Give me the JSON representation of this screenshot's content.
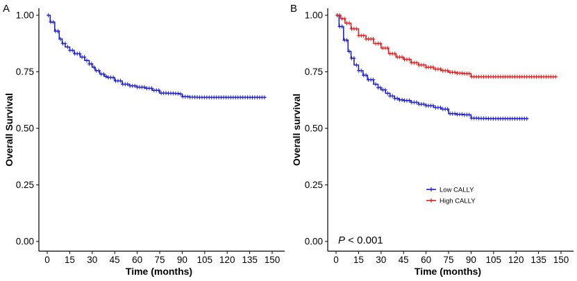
{
  "chart_data": [
    {
      "type": "line",
      "panel_label": "A",
      "xlabel": "Time (months)",
      "ylabel": "Overall Survival",
      "xlim": [
        0,
        150
      ],
      "ylim": [
        0,
        1
      ],
      "x_ticks": [
        "0",
        "15",
        "30",
        "45",
        "60",
        "75",
        "90",
        "105",
        "120",
        "135",
        "150"
      ],
      "y_ticks": [
        "0.00",
        "0.25",
        "0.50",
        "0.75",
        "1.00"
      ],
      "grid": false,
      "series": [
        {
          "color": "#1f1fd4",
          "x": [
            0,
            2,
            5,
            8,
            10,
            12,
            15,
            18,
            22,
            25,
            28,
            30,
            32,
            35,
            38,
            40,
            45,
            50,
            55,
            60,
            65,
            70,
            75,
            80,
            85,
            88,
            90,
            95,
            100,
            110,
            120,
            130,
            140,
            146
          ],
          "y": [
            1.0,
            0.97,
            0.93,
            0.895,
            0.875,
            0.86,
            0.845,
            0.83,
            0.815,
            0.8,
            0.785,
            0.77,
            0.755,
            0.74,
            0.73,
            0.725,
            0.71,
            0.695,
            0.688,
            0.682,
            0.677,
            0.668,
            0.656,
            0.655,
            0.654,
            0.652,
            0.64,
            0.638,
            0.637,
            0.637,
            0.637,
            0.637,
            0.637,
            0.637
          ]
        }
      ]
    },
    {
      "type": "line",
      "panel_label": "B",
      "xlabel": "Time (months)",
      "ylabel": "Overall survival",
      "xlim": [
        0,
        150
      ],
      "ylim": [
        0,
        1
      ],
      "x_ticks": [
        "0",
        "15",
        "30",
        "45",
        "60",
        "75",
        "90",
        "105",
        "120",
        "135",
        "150"
      ],
      "y_ticks": [
        "0.00",
        "0.25",
        "0.50",
        "0.75",
        "1.00"
      ],
      "grid": false,
      "legend_position": "center-right",
      "annotation": {
        "prefix": "P",
        "text": " < 0.001"
      },
      "series": [
        {
          "name": "Low  CALLY",
          "color": "#1f1fd4",
          "x": [
            0,
            2,
            5,
            8,
            10,
            12,
            15,
            18,
            21,
            25,
            28,
            30,
            33,
            36,
            39,
            42,
            45,
            50,
            55,
            60,
            65,
            70,
            75,
            80,
            85,
            90,
            95,
            100,
            110,
            120,
            128
          ],
          "y": [
            1.0,
            0.95,
            0.89,
            0.84,
            0.81,
            0.78,
            0.755,
            0.735,
            0.715,
            0.695,
            0.68,
            0.67,
            0.655,
            0.643,
            0.632,
            0.626,
            0.623,
            0.615,
            0.607,
            0.6,
            0.592,
            0.585,
            0.565,
            0.562,
            0.56,
            0.545,
            0.544,
            0.543,
            0.543,
            0.543,
            0.543
          ]
        },
        {
          "name": "High CALLY",
          "color": "#e21e1e",
          "x": [
            0,
            3,
            6,
            10,
            15,
            20,
            25,
            30,
            35,
            40,
            45,
            50,
            55,
            60,
            65,
            70,
            75,
            80,
            85,
            90,
            95,
            100,
            110,
            120,
            130,
            140,
            147
          ],
          "y": [
            1.0,
            0.985,
            0.965,
            0.94,
            0.91,
            0.895,
            0.875,
            0.855,
            0.83,
            0.815,
            0.805,
            0.79,
            0.78,
            0.77,
            0.762,
            0.755,
            0.748,
            0.744,
            0.742,
            0.728,
            0.728,
            0.728,
            0.728,
            0.728,
            0.728,
            0.728,
            0.728
          ]
        }
      ]
    }
  ]
}
